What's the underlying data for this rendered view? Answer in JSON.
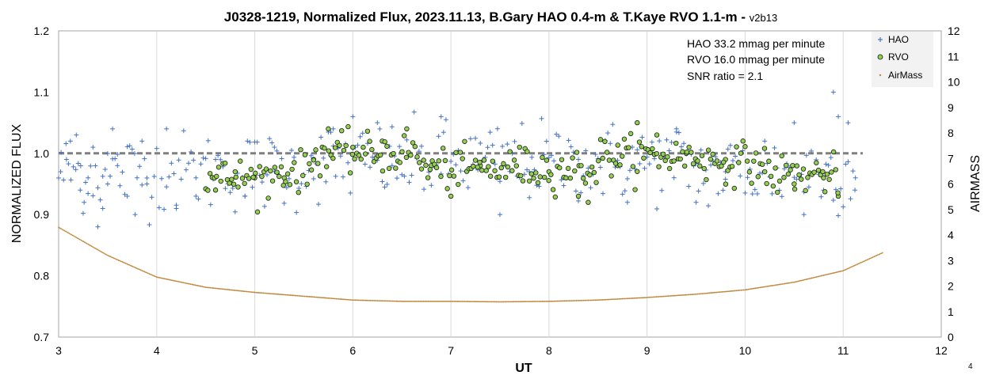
{
  "chart_data": {
    "type": "scatter",
    "title": "J0328-1219, Normalized Flux, 2023.11.13, B.Gary HAO 0.4-m & T.Kaye RVO 1.1-m - ",
    "version_tag": "v2b13",
    "xlabel": "UT",
    "ylabel": "NORMALIZED FLUX",
    "y2label": "AIRMASS",
    "xlim": [
      3,
      12
    ],
    "ylim": [
      0.7,
      1.2
    ],
    "y2lim": [
      0,
      12
    ],
    "x_ticks": [
      "3",
      "4",
      "5",
      "6",
      "7",
      "8",
      "9",
      "10",
      "11",
      "12"
    ],
    "y_ticks": [
      "0.7",
      "0.8",
      "0.9",
      "1.0",
      "1.1",
      "1.2"
    ],
    "y2_ticks": [
      "0",
      "1",
      "2",
      "3",
      "4",
      "5",
      "6",
      "7",
      "8",
      "9",
      "10",
      "11",
      "12"
    ],
    "grid": "vertical",
    "reference_line": 1.0,
    "annotations": [
      "HAO 33.2 mmag per minute",
      "RVO 16.0 mmag per minute",
      "SNR ratio = 2.1"
    ],
    "legend_position": "top-right",
    "series": [
      {
        "name": "HAO",
        "marker": "plus",
        "color": "#4472C4",
        "axis": "left",
        "x_range": [
          3.0,
          11.15
        ],
        "sigma": 0.033,
        "mean": 0.97,
        "points": [
          [
            3.02,
            0.97
          ],
          [
            3.08,
            0.99
          ],
          [
            3.12,
            1.02
          ],
          [
            3.18,
            1.03
          ],
          [
            3.22,
            0.94
          ],
          [
            3.26,
            0.92
          ],
          [
            3.3,
            0.96
          ],
          [
            3.35,
            1.01
          ],
          [
            3.4,
            0.88
          ],
          [
            3.45,
            0.91
          ],
          [
            3.5,
            0.95
          ],
          [
            3.55,
            1.04
          ],
          [
            3.6,
            0.98
          ],
          [
            3.7,
            0.93
          ],
          [
            3.78,
            0.9
          ],
          [
            3.85,
            1.02
          ],
          [
            3.9,
            0.95
          ],
          [
            4.1,
            1.04
          ],
          [
            4.2,
            0.91
          ],
          [
            4.4,
            0.96
          ],
          [
            4.6,
            0.99
          ],
          [
            4.9,
            0.93
          ],
          [
            5.2,
            1.01
          ],
          [
            5.8,
            1.04
          ],
          [
            6.0,
            1.06
          ],
          [
            6.25,
            1.05
          ],
          [
            6.4,
            0.98
          ],
          [
            6.9,
            1.06
          ],
          [
            7.5,
            0.9
          ],
          [
            7.8,
            0.97
          ],
          [
            8.3,
            0.99
          ],
          [
            8.8,
            0.92
          ],
          [
            9.3,
            1.04
          ],
          [
            9.5,
            0.92
          ],
          [
            9.8,
            0.97
          ],
          [
            10.2,
            1.02
          ],
          [
            10.5,
            1.05
          ],
          [
            10.6,
            0.9
          ],
          [
            10.9,
            1.1
          ],
          [
            10.95,
            1.06
          ],
          [
            11.05,
            1.05
          ],
          [
            11.12,
            0.94
          ]
        ]
      },
      {
        "name": "RVO",
        "marker": "circle",
        "color": "#92D050",
        "axis": "left",
        "x_range": [
          4.5,
          11.0
        ],
        "sigma": 0.016,
        "mean": 0.98,
        "points": [
          [
            4.6,
            0.94
          ],
          [
            4.8,
            0.97
          ],
          [
            5.0,
            0.96
          ],
          [
            5.3,
            0.96
          ],
          [
            5.6,
            0.99
          ],
          [
            5.75,
            1.04
          ],
          [
            6.0,
            1.01
          ],
          [
            6.3,
            1.02
          ],
          [
            6.55,
            1.04
          ],
          [
            6.8,
            0.98
          ],
          [
            7.0,
            0.93
          ],
          [
            7.3,
            0.98
          ],
          [
            7.7,
            1.01
          ],
          [
            8.0,
            0.97
          ],
          [
            8.3,
            0.93
          ],
          [
            8.4,
            0.92
          ],
          [
            8.7,
            0.98
          ],
          [
            8.9,
            1.05
          ],
          [
            9.1,
            1.03
          ],
          [
            9.4,
            1.0
          ],
          [
            9.8,
            0.99
          ],
          [
            10.2,
            0.97
          ],
          [
            10.5,
            0.95
          ],
          [
            10.8,
            0.96
          ],
          [
            10.95,
            0.93
          ]
        ]
      },
      {
        "name": "AirMass",
        "marker": "dot",
        "color": "#C0873A",
        "axis": "right",
        "x_range": [
          3.0,
          11.4
        ],
        "points": [
          [
            3.0,
            4.3
          ],
          [
            3.5,
            3.2
          ],
          [
            4.0,
            2.35
          ],
          [
            4.5,
            1.95
          ],
          [
            5.0,
            1.75
          ],
          [
            5.5,
            1.6
          ],
          [
            6.0,
            1.45
          ],
          [
            6.5,
            1.4
          ],
          [
            7.0,
            1.4
          ],
          [
            7.5,
            1.38
          ],
          [
            8.0,
            1.4
          ],
          [
            8.5,
            1.45
          ],
          [
            9.0,
            1.55
          ],
          [
            9.5,
            1.68
          ],
          [
            10.0,
            1.85
          ],
          [
            10.5,
            2.15
          ],
          [
            11.0,
            2.6
          ],
          [
            11.4,
            3.3
          ]
        ]
      }
    ]
  },
  "page_number": "4"
}
